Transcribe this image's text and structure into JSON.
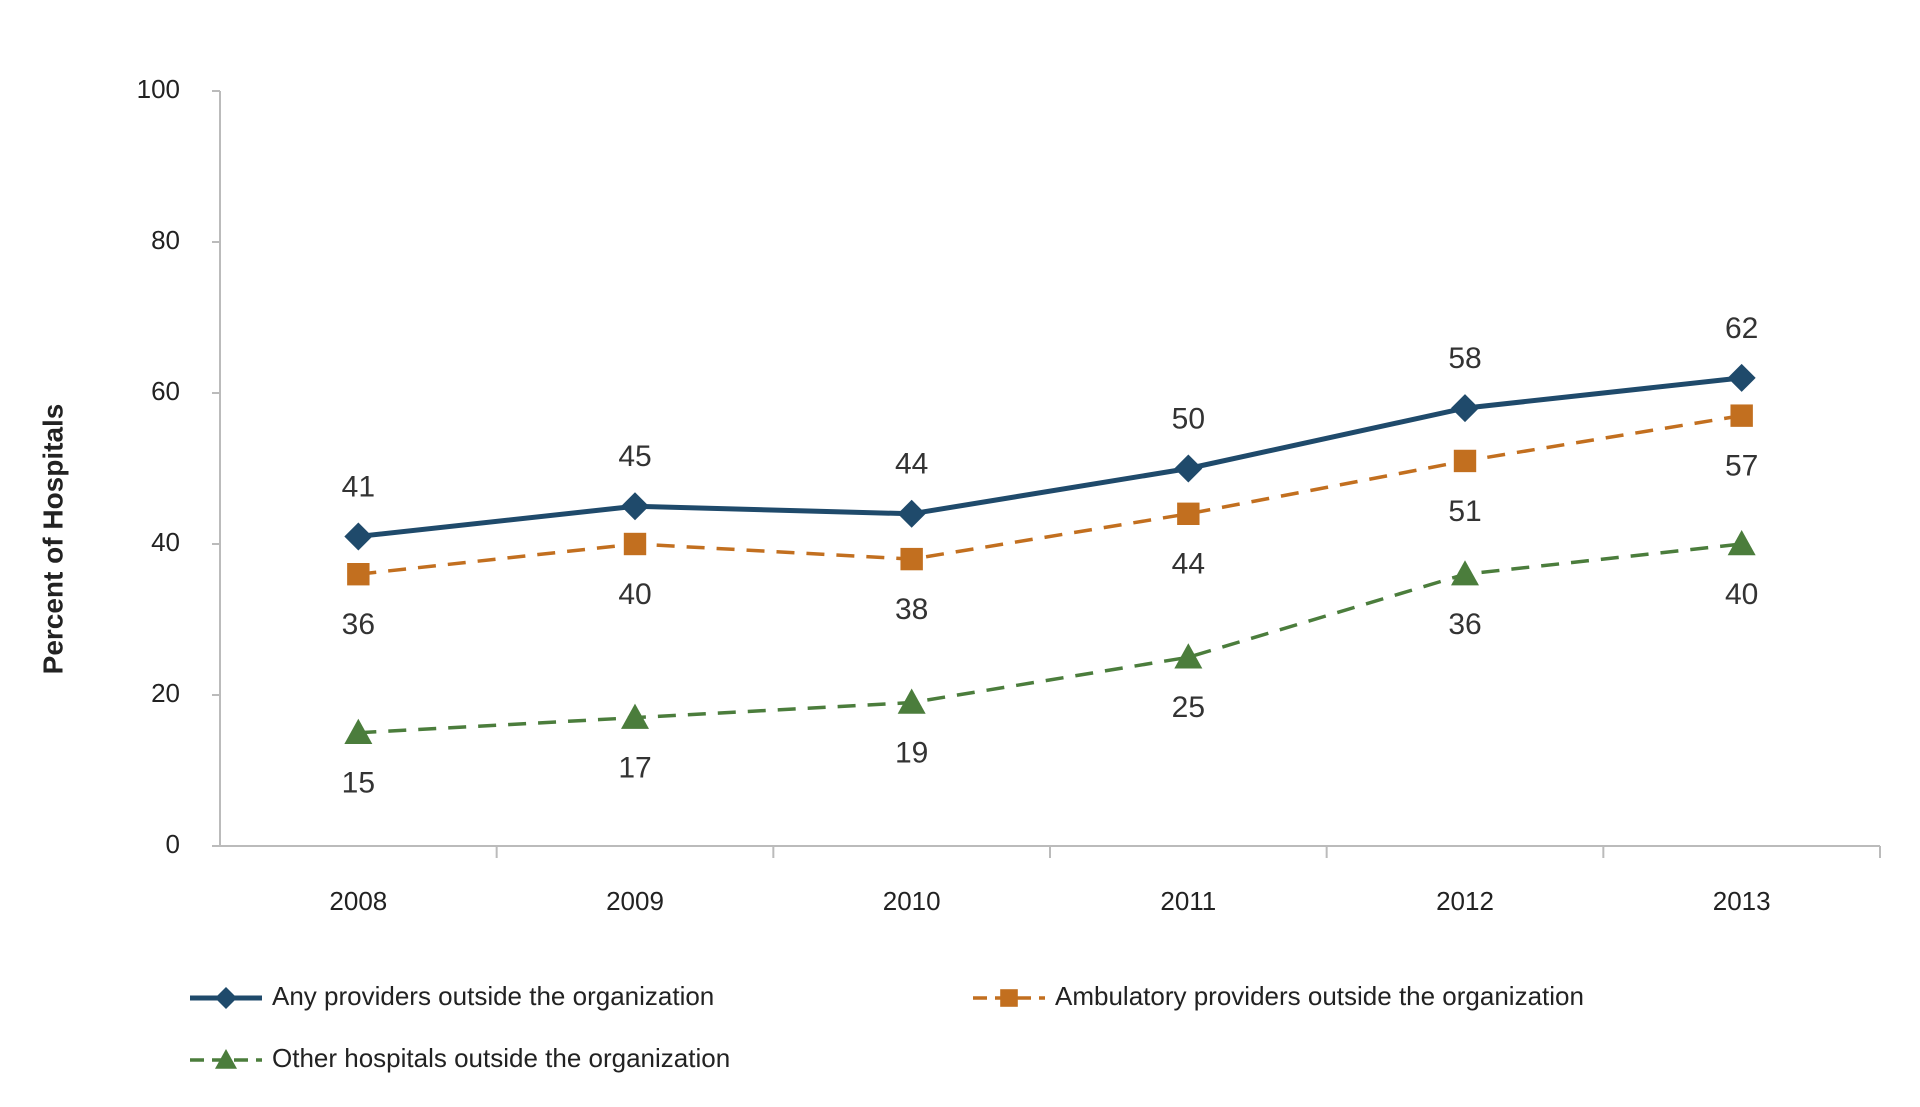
{
  "chart_data": {
    "type": "line",
    "y_label": "Percent of Hospitals",
    "categories": [
      "2008",
      "2009",
      "2010",
      "2011",
      "2012",
      "2013"
    ],
    "series": [
      {
        "name": "Any providers outside the organization",
        "color": "#1f4a6b",
        "marker": "diamond",
        "dash": false,
        "values": [
          41,
          45,
          44,
          50,
          58,
          62
        ]
      },
      {
        "name": "Ambulatory providers outside the organization",
        "color": "#c26f1f",
        "marker": "square",
        "dash": true,
        "values": [
          36,
          40,
          38,
          44,
          51,
          57
        ]
      },
      {
        "name": "Other hospitals outside the organization",
        "color": "#4b7d3c",
        "marker": "triangle",
        "dash": true,
        "values": [
          15,
          17,
          19,
          25,
          36,
          40
        ]
      }
    ],
    "ylim": [
      0,
      100
    ],
    "yticks": [
      0,
      20,
      40,
      60,
      80,
      100
    ],
    "grid": false
  }
}
